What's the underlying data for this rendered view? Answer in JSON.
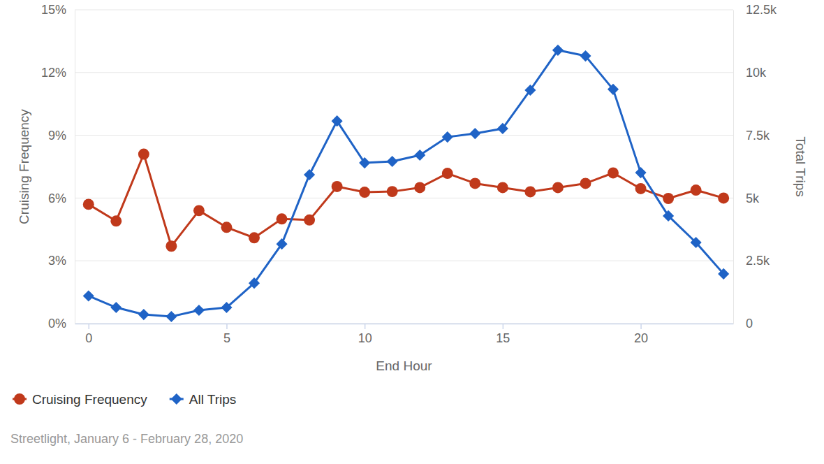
{
  "chart_data": {
    "type": "line",
    "xlabel": "End Hour",
    "ylabel": "Cruising Frequency",
    "y2label": "Total Trips",
    "annotations": [
      "Streetlight, January 6 - February 28, 2020"
    ],
    "x": [
      0,
      1,
      2,
      3,
      4,
      5,
      6,
      7,
      8,
      9,
      10,
      11,
      12,
      13,
      14,
      15,
      16,
      17,
      18,
      19,
      20,
      21,
      22,
      23
    ],
    "xlim": [
      -0.5,
      23.35
    ],
    "xticks": [
      0,
      5,
      10,
      15,
      20
    ],
    "ylim": [
      0,
      15
    ],
    "yticks": [
      {
        "value": 0,
        "label": "0%"
      },
      {
        "value": 3,
        "label": "3%"
      },
      {
        "value": 6,
        "label": "6%"
      },
      {
        "value": 9,
        "label": "9%"
      },
      {
        "value": 12,
        "label": "12%"
      },
      {
        "value": 15,
        "label": "15%"
      }
    ],
    "y2lim": [
      0,
      12500
    ],
    "y2ticks": [
      0,
      {
        "value": 2500,
        "label": "2.5k"
      },
      {
        "value": 5000,
        "label": "5k"
      },
      {
        "value": 7500,
        "label": "7.5k"
      },
      {
        "value": 10000,
        "label": "10k"
      },
      {
        "value": 12500,
        "label": "12.5k"
      }
    ],
    "grid": true,
    "legend": "bottom-left",
    "series": [
      {
        "name": "Cruising Frequency",
        "color": "#c0391b",
        "marker": "circle",
        "values": [
          5.7,
          4.9,
          8.1,
          3.7,
          5.4,
          4.6,
          4.1,
          5.0,
          4.95,
          6.55,
          6.28,
          6.31,
          6.5,
          7.18,
          6.7,
          6.5,
          6.3,
          6.5,
          6.7,
          7.2,
          6.45,
          5.98,
          6.38,
          6.0
        ]
      },
      {
        "name": "All Trips",
        "color": "#1f63c6",
        "marker": "diamond",
        "axis": "y2",
        "values": [
          1100,
          640,
          360,
          280,
          530,
          640,
          1610,
          3170,
          5930,
          8070,
          6400,
          6460,
          6710,
          7430,
          7570,
          7770,
          9300,
          10890,
          10660,
          9330,
          6010,
          4290,
          3230,
          1980
        ]
      }
    ]
  }
}
